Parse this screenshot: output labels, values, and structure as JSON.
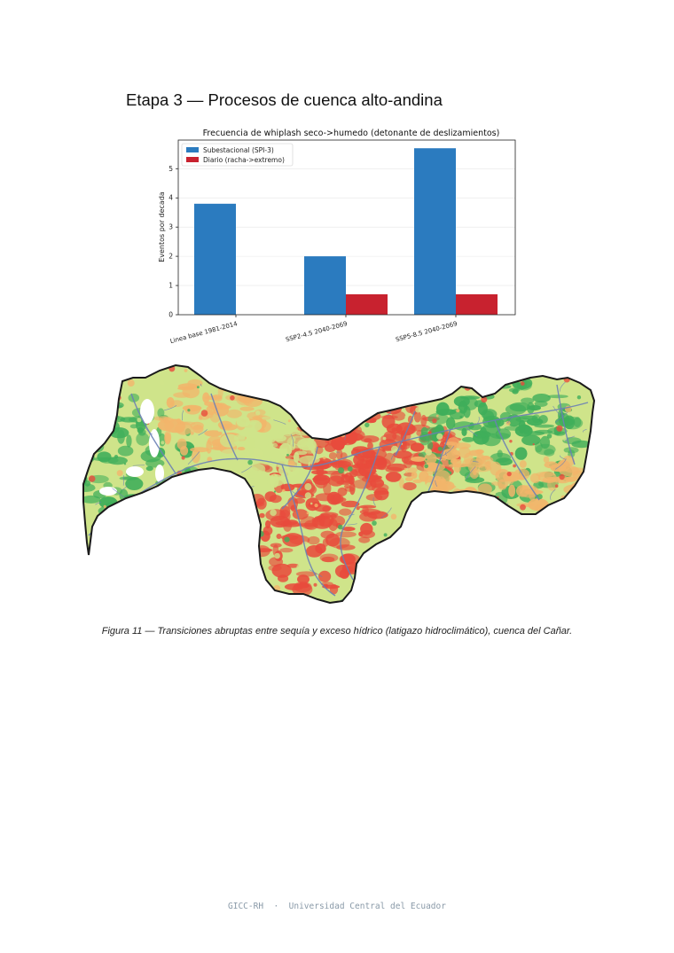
{
  "page": {
    "heading": "Etapa 3 — Procesos de cuenca alto-andina",
    "caption": "Figura 11 — Transiciones abruptas entre sequía y exceso hídrico (latigazo hidroclimático), cuenca del Cañar.",
    "footer": "GICC-RH  ·  Universidad Central del Ecuador"
  },
  "chart_data": {
    "type": "bar",
    "title": "Frecuencia de whiplash seco->humedo (detonante de deslizamientos)",
    "ylabel": "Eventos por decada",
    "xlabel": "",
    "categories": [
      "Linea base 1981-2014",
      "SSP2-4.5 2040-2069",
      "SSP5-8.5 2040-2069"
    ],
    "series": [
      {
        "name": "Subestacional (SPI-3)",
        "values": [
          3.8,
          2.0,
          5.7
        ],
        "color": "#2b7bbf"
      },
      {
        "name": "Diario (racha->extremo)",
        "values": [
          0,
          0.7,
          0.7
        ],
        "color": "#c8222f"
      }
    ],
    "ylim": [
      0,
      5.98
    ],
    "yticks": [
      0,
      1,
      2,
      3,
      4,
      5
    ],
    "grid": true,
    "legend": "top-left"
  },
  "map": {
    "colors": {
      "outline": "#1a1a1a",
      "river": "#6a7fb5",
      "high": "#e84b3c",
      "mid": "#f2b56b",
      "low": "#cfe48a",
      "forest": "#3fae5a"
    }
  }
}
